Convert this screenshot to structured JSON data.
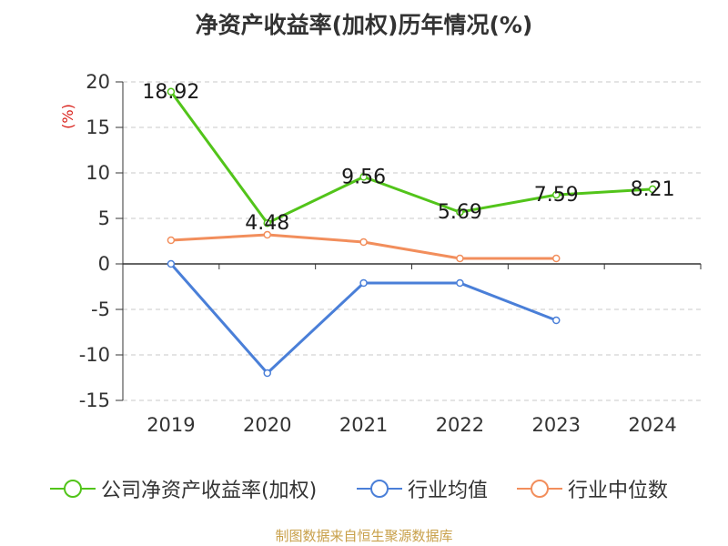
{
  "chart_data": {
    "type": "line",
    "title": "净资产收益率(加权)历年情况(%)",
    "ylabel": "(%)",
    "xlabel": "",
    "categories": [
      "2019",
      "2020",
      "2021",
      "2022",
      "2023",
      "2024"
    ],
    "ylim": [
      -15,
      20
    ],
    "yticks": [
      20,
      15,
      10,
      5,
      0,
      -5,
      -10,
      -15
    ],
    "grid": true,
    "legend_position": "bottom",
    "series": [
      {
        "name": "公司净资产收益率(加权)",
        "color": "#52c41a",
        "values": [
          18.92,
          4.48,
          9.56,
          5.69,
          7.59,
          8.21
        ],
        "labels": [
          "18.92",
          "4.48",
          "9.56",
          "5.69",
          "7.59",
          "8.21"
        ]
      },
      {
        "name": "行业均值",
        "color": "#4a7fd8",
        "values": [
          0,
          -12,
          -2.1,
          -2.1,
          -6.2,
          null
        ]
      },
      {
        "name": "行业中位数",
        "color": "#f28e5c",
        "values": [
          2.6,
          3.2,
          2.4,
          0.6,
          0.6,
          null
        ]
      }
    ],
    "source": "制图数据来自恒生聚源数据库"
  }
}
